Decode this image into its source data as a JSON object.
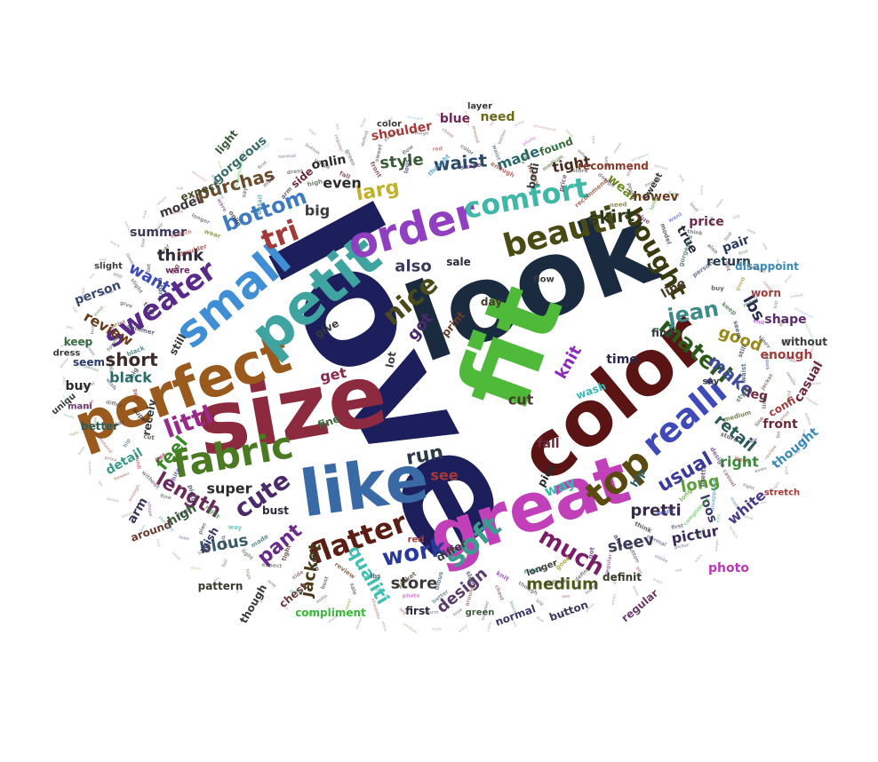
{
  "words": [
    {
      "text": "love",
      "color": "#1c1f5c"
    },
    {
      "text": "look",
      "color": "#1a2b3f"
    },
    {
      "text": "fit",
      "color": "#4fb93a"
    },
    {
      "text": "size",
      "color": "#8c2a3f"
    },
    {
      "text": "color",
      "color": "#5a1414"
    },
    {
      "text": "great",
      "color": "#c13fb9"
    },
    {
      "text": "like",
      "color": "#3a6aa6"
    },
    {
      "text": "perfect",
      "color": "#9a5a1e"
    },
    {
      "text": "petit",
      "color": "#3fa3a0"
    },
    {
      "text": "small",
      "color": "#3f8ed6"
    },
    {
      "text": "order",
      "color": "#8f3fbf"
    },
    {
      "text": "fabric",
      "color": "#4a7a22"
    },
    {
      "text": "top",
      "color": "#5a4a10"
    },
    {
      "text": "beauti",
      "color": "#4a4a14"
    },
    {
      "text": "comfort",
      "color": "#3fb8a8"
    },
    {
      "text": "realli",
      "color": "#3f4ab8"
    },
    {
      "text": "flatter",
      "color": "#5a1e14"
    },
    {
      "text": "sweater",
      "color": "#5a2a8a"
    },
    {
      "text": "tri",
      "color": "#a33a3a"
    },
    {
      "text": "soft",
      "color": "#3f9a90"
    },
    {
      "text": "nice",
      "color": "#4a4a1a"
    },
    {
      "text": "cute",
      "color": "#4a2a6a"
    },
    {
      "text": "bought",
      "color": "#3a3a10"
    },
    {
      "text": "littl",
      "color": "#9a2a8a"
    },
    {
      "text": "work",
      "color": "#2a3a9a"
    },
    {
      "text": "much",
      "color": "#7a1e6a"
    },
    {
      "text": "materi",
      "color": "#2a5a1a"
    },
    {
      "text": "jean",
      "color": "#3f8a8a"
    },
    {
      "text": "bottom",
      "color": "#3f7ac0"
    },
    {
      "text": "run",
      "color": "#2a3a4a"
    },
    {
      "text": "usual",
      "color": "#3a3a9a"
    },
    {
      "text": "larg",
      "color": "#c0b02a"
    },
    {
      "text": "pant",
      "color": "#6a2a8a"
    },
    {
      "text": "length",
      "color": "#6a2a5a"
    },
    {
      "text": "feel",
      "color": "#3a8a2a"
    },
    {
      "text": "qualiti",
      "color": "#3fc0b0"
    },
    {
      "text": "skirt",
      "color": "#2a3a1a"
    },
    {
      "text": "short",
      "color": "#3a2a2a"
    },
    {
      "text": "make",
      "color": "#3f4a9a"
    },
    {
      "text": "purchas",
      "color": "#6a4a2a"
    },
    {
      "text": "waist",
      "color": "#2a4a6a"
    },
    {
      "text": "style",
      "color": "#3a5a3a"
    },
    {
      "text": "medium",
      "color": "#4a5a1a"
    },
    {
      "text": "store",
      "color": "#3a3a3a"
    },
    {
      "text": "design",
      "color": "#5a3a6a"
    },
    {
      "text": "pretti",
      "color": "#3a2a4a"
    },
    {
      "text": "long",
      "color": "#5aa03a"
    },
    {
      "text": "want",
      "color": "#3a4ab8"
    },
    {
      "text": "think",
      "color": "#2a2a3a"
    },
    {
      "text": "also",
      "color": "#3a3a5a"
    },
    {
      "text": "got",
      "color": "#4a2a6a"
    },
    {
      "text": "good",
      "color": "#9a8a1a"
    },
    {
      "text": "retail",
      "color": "#2a5a5a"
    },
    {
      "text": "knit",
      "color": "#8a2ab8"
    },
    {
      "text": "sleev",
      "color": "#3a3a5a"
    },
    {
      "text": "blous",
      "color": "#3a5a6a"
    },
    {
      "text": "jacket",
      "color": "#4a3a1a"
    },
    {
      "text": "lbs",
      "color": "#2a2a4a"
    },
    {
      "text": "review",
      "color": "#6a3a1a"
    },
    {
      "text": "even",
      "color": "#2a2a2a"
    },
    {
      "text": "tight",
      "color": "#4a2a1a"
    },
    {
      "text": "made",
      "color": "#2a6a6a"
    },
    {
      "text": "way",
      "color": "#3ab8a8"
    },
    {
      "text": "right",
      "color": "#3a8a3a"
    },
    {
      "text": "pictur",
      "color": "#3a2a5a"
    },
    {
      "text": "white",
      "color": "#4a3a8a"
    },
    {
      "text": "get",
      "color": "#8a2a4a"
    },
    {
      "text": "cut",
      "color": "#4a3a2a"
    },
    {
      "text": "super",
      "color": "#2a2a2a"
    },
    {
      "text": "see",
      "color": "#a33a3a"
    },
    {
      "text": "big",
      "color": "#3a3a3a"
    },
    {
      "text": "black",
      "color": "#2a6a6a"
    },
    {
      "text": "summer",
      "color": "#3a3a5a"
    },
    {
      "text": "true",
      "color": "#2a2a3a"
    },
    {
      "text": "return",
      "color": "#2a3a4a"
    },
    {
      "text": "leg",
      "color": "#6a2a3a"
    },
    {
      "text": "shoulder",
      "color": "#a33a3a"
    },
    {
      "text": "wear",
      "color": "#6a8a1a"
    },
    {
      "text": "onlin",
      "color": "#2a2a2a"
    },
    {
      "text": "detail",
      "color": "#3a9a8a"
    },
    {
      "text": "arm",
      "color": "#3a3a5a"
    },
    {
      "text": "high",
      "color": "#3a5a3a"
    },
    {
      "text": "fall",
      "color": "#6a2a3a"
    },
    {
      "text": "front",
      "color": "#6a2a3a"
    },
    {
      "text": "loos",
      "color": "#3a3a6a"
    },
    {
      "text": "thought",
      "color": "#3a8ab8"
    },
    {
      "text": "shape",
      "color": "#5a2a6a"
    },
    {
      "text": "enough",
      "color": "#a33a3a"
    },
    {
      "text": "howev",
      "color": "#6a3a1a"
    },
    {
      "text": "price",
      "color": "#6a2a4a"
    },
    {
      "text": "recommend",
      "color": "#8a3a2a"
    },
    {
      "text": "need",
      "color": "#6a6a1a"
    },
    {
      "text": "blue",
      "color": "#6a2a5a"
    },
    {
      "text": "model",
      "color": "#3a3a3a"
    },
    {
      "text": "gorgeous",
      "color": "#3a6a6a"
    },
    {
      "text": "person",
      "color": "#3a4a6a"
    },
    {
      "text": "buy",
      "color": "#2a2a2a"
    },
    {
      "text": "keep",
      "color": "#3a6a3a"
    },
    {
      "text": "seem",
      "color": "#2a3a6a"
    },
    {
      "text": "still",
      "color": "#3a3a3a"
    },
    {
      "text": "time",
      "color": "#2a2a4a"
    },
    {
      "text": "line",
      "color": "#4a3a2a"
    },
    {
      "text": "pair",
      "color": "#2a3a5a"
    },
    {
      "text": "worn",
      "color": "#a33a3a"
    },
    {
      "text": "casual",
      "color": "#6a2a3a"
    },
    {
      "text": "disappoint",
      "color": "#3a8ab8"
    },
    {
      "text": "compliment",
      "color": "#3ab83a"
    },
    {
      "text": "first",
      "color": "#2a2a3a"
    },
    {
      "text": "normal",
      "color": "#3a3a6a"
    },
    {
      "text": "button",
      "color": "#3a3a5a"
    },
    {
      "text": "regular",
      "color": "#6a3a6a"
    },
    {
      "text": "definit",
      "color": "#3a3a2a"
    },
    {
      "text": "pattern",
      "color": "#3a3a2a"
    },
    {
      "text": "though",
      "color": "#3a3a3a"
    },
    {
      "text": "chest",
      "color": "#6a3a3a"
    },
    {
      "text": "around",
      "color": "#6a3a2a"
    },
    {
      "text": "better",
      "color": "#2a5a5a"
    },
    {
      "text": "photo",
      "color": "#b83ab8"
    },
    {
      "text": "wash",
      "color": "#3ab8b8"
    },
    {
      "text": "sale",
      "color": "#2a2a3a"
    },
    {
      "text": "bust",
      "color": "#2a2a3a"
    },
    {
      "text": "side",
      "color": "#6a2a3a"
    },
    {
      "text": "expect",
      "color": "#4a4a2a"
    },
    {
      "text": "light",
      "color": "#3a5a3a"
    },
    {
      "text": "bodi",
      "color": "#3a3a3a"
    },
    {
      "text": "piec",
      "color": "#2a2a2a"
    },
    {
      "text": "find",
      "color": "#2a3a3a"
    },
    {
      "text": "fine",
      "color": "#3a6a3a"
    },
    {
      "text": "without",
      "color": "#3a3a3a"
    },
    {
      "text": "confi",
      "color": "#a33a3a"
    },
    {
      "text": "hip",
      "color": "#2a5a5a"
    },
    {
      "text": "day",
      "color": "#4a3a2a"
    },
    {
      "text": "differ",
      "color": "#3a3a3a"
    },
    {
      "text": "wish",
      "color": "#3a3a6a"
    },
    {
      "text": "receiv",
      "color": "#3a3a3a"
    },
    {
      "text": "found",
      "color": "#3a6a3a"
    },
    {
      "text": "print",
      "color": "#6a3a2a"
    },
    {
      "text": "give",
      "color": "#3a3a3a"
    },
    {
      "text": "slight",
      "color": "#3a3a3a"
    },
    {
      "text": "lot",
      "color": "#3a3a3a"
    },
    {
      "text": "layer",
      "color": "#3a3a3a"
    },
    {
      "text": "stretch",
      "color": "#a33a3a"
    },
    {
      "text": "longer",
      "color": "#3a3a3a"
    },
    {
      "text": "ware",
      "color": "#6a2a6a"
    },
    {
      "text": "say",
      "color": "#3a3a3a"
    },
    {
      "text": "mani",
      "color": "#6a3a6a"
    },
    {
      "text": "dress",
      "color": "#3a3a3a"
    },
    {
      "text": "uniqu",
      "color": "#3a3a3a"
    },
    {
      "text": "green",
      "color": "#3a5a3a"
    },
    {
      "text": "sweet",
      "color": "#3a3a3a"
    },
    {
      "text": "flow",
      "color": "#3a3a3a"
    },
    {
      "text": "red",
      "color": "#a33a3a"
    },
    {
      "text": "color",
      "color": "#3a3a3a"
    }
  ]
}
